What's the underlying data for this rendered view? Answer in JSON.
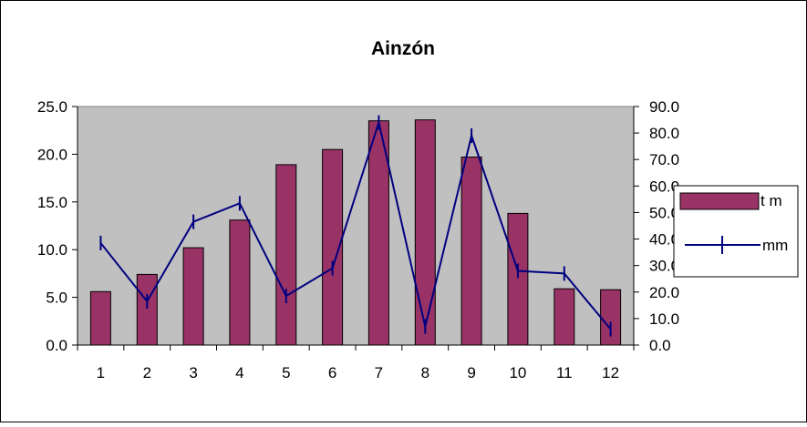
{
  "chart_data": {
    "type": "bar",
    "title": "Ainzón",
    "categories": [
      "1",
      "2",
      "3",
      "4",
      "5",
      "6",
      "7",
      "8",
      "9",
      "10",
      "11",
      "12"
    ],
    "series": [
      {
        "name": "t m",
        "type": "bar",
        "axis": "left",
        "color": "#993366",
        "values": [
          5.6,
          7.4,
          10.2,
          13.1,
          18.9,
          20.5,
          23.5,
          23.6,
          19.7,
          13.8,
          5.9,
          5.8
        ]
      },
      {
        "name": "mm",
        "type": "line",
        "axis": "right",
        "color": "#000080",
        "marker": "vertical-tick",
        "values": [
          38.5,
          16.5,
          46.5,
          53.5,
          18.5,
          29.0,
          84.0,
          7.0,
          79.0,
          28.0,
          27.0,
          6.0
        ]
      }
    ],
    "y_left": {
      "lim": [
        0,
        25
      ],
      "ticks": [
        "0.0",
        "5.0",
        "10.0",
        "15.0",
        "20.0",
        "25.0"
      ]
    },
    "y_right": {
      "lim": [
        0,
        90
      ],
      "ticks": [
        "0.0",
        "10.0",
        "20.0",
        "30.0",
        "40.0",
        "50.0",
        "60.0",
        "70.0",
        "80.0",
        "90.0"
      ]
    },
    "plot_background": "#c0c0c0",
    "grid": false,
    "legend_position": "right"
  }
}
